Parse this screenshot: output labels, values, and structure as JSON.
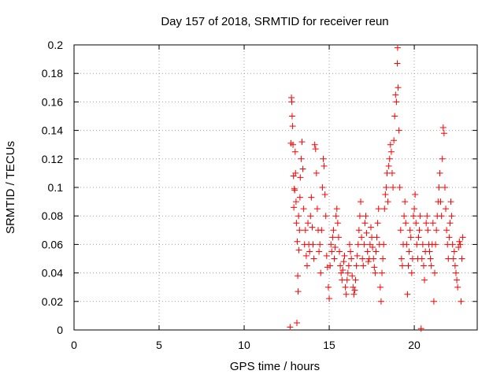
{
  "chart_data": {
    "type": "scatter",
    "title": "Day 157 of 2018, SRMTID for receiver reun",
    "xlabel": "GPS time / hours",
    "ylabel": "SRMTID / TECUs",
    "xlim": [
      0,
      23.7
    ],
    "ylim": [
      0,
      0.2
    ],
    "x_ticks": [
      0,
      5,
      10,
      15,
      20
    ],
    "x_tick_labels": [
      "0",
      "5",
      "10",
      "15",
      "20"
    ],
    "y_ticks": [
      0,
      0.02,
      0.04,
      0.06,
      0.08,
      0.1,
      0.12,
      0.14,
      0.16,
      0.18,
      0.2
    ],
    "y_tick_labels": [
      "0",
      "0.02",
      "0.04",
      "0.06",
      "0.08",
      "0.1",
      "0.12",
      "0.14",
      "0.16",
      "0.18",
      "0.2"
    ],
    "grid": true,
    "marker": "plus",
    "color": "#ff0000",
    "series": [
      {
        "name": "SRMTID",
        "points": [
          [
            12.7,
            0.002
          ],
          [
            12.75,
            0.131
          ],
          [
            12.78,
            0.163
          ],
          [
            12.8,
            0.16
          ],
          [
            12.82,
            0.15
          ],
          [
            12.85,
            0.143
          ],
          [
            12.87,
            0.13
          ],
          [
            12.9,
            0.108
          ],
          [
            12.92,
            0.086
          ],
          [
            12.95,
            0.099
          ],
          [
            12.97,
            0.098
          ],
          [
            13.0,
            0.125
          ],
          [
            13.02,
            0.11
          ],
          [
            13.05,
            0.09
          ],
          [
            13.07,
            0.075
          ],
          [
            13.1,
            0.005
          ],
          [
            13.12,
            0.062
          ],
          [
            13.15,
            0.038
          ],
          [
            13.17,
            0.027
          ],
          [
            13.2,
            0.08
          ],
          [
            13.22,
            0.056
          ],
          [
            13.25,
            0.07
          ],
          [
            13.28,
            0.093
          ],
          [
            13.3,
            0.107
          ],
          [
            13.35,
            0.12
          ],
          [
            13.4,
            0.132
          ],
          [
            13.45,
            0.113
          ],
          [
            13.5,
            0.085
          ],
          [
            13.55,
            0.06
          ],
          [
            13.6,
            0.07
          ],
          [
            13.65,
            0.052
          ],
          [
            13.7,
            0.045
          ],
          [
            13.75,
            0.075
          ],
          [
            13.8,
            0.06
          ],
          [
            13.85,
            0.055
          ],
          [
            13.9,
            0.08
          ],
          [
            13.95,
            0.093
          ],
          [
            14.0,
            0.072
          ],
          [
            14.05,
            0.06
          ],
          [
            14.1,
            0.05
          ],
          [
            14.15,
            0.13
          ],
          [
            14.2,
            0.127
          ],
          [
            14.25,
            0.11
          ],
          [
            14.3,
            0.085
          ],
          [
            14.35,
            0.07
          ],
          [
            14.4,
            0.055
          ],
          [
            14.45,
            0.06
          ],
          [
            14.5,
            0.04
          ],
          [
            14.55,
            0.07
          ],
          [
            14.6,
            0.1
          ],
          [
            14.65,
            0.12
          ],
          [
            14.7,
            0.115
          ],
          [
            14.75,
            0.095
          ],
          [
            14.8,
            0.08
          ],
          [
            14.85,
            0.052
          ],
          [
            14.9,
            0.044
          ],
          [
            14.95,
            0.03
          ],
          [
            15.0,
            0.022
          ],
          [
            15.05,
            0.045
          ],
          [
            15.1,
            0.06
          ],
          [
            15.15,
            0.055
          ],
          [
            15.2,
            0.065
          ],
          [
            15.25,
            0.07
          ],
          [
            15.3,
            0.05
          ],
          [
            15.35,
            0.058
          ],
          [
            15.4,
            0.08
          ],
          [
            15.45,
            0.085
          ],
          [
            15.5,
            0.075
          ],
          [
            15.55,
            0.065
          ],
          [
            15.6,
            0.055
          ],
          [
            15.65,
            0.045
          ],
          [
            15.7,
            0.04
          ],
          [
            15.75,
            0.035
          ],
          [
            15.8,
            0.042
          ],
          [
            15.85,
            0.048
          ],
          [
            15.9,
            0.052
          ],
          [
            15.95,
            0.03
          ],
          [
            16.0,
            0.025
          ],
          [
            16.05,
            0.035
          ],
          [
            16.1,
            0.04
          ],
          [
            16.15,
            0.045
          ],
          [
            16.2,
            0.06
          ],
          [
            16.25,
            0.055
          ],
          [
            16.3,
            0.05
          ],
          [
            16.35,
            0.038
          ],
          [
            16.4,
            0.03
          ],
          [
            16.45,
            0.025
          ],
          [
            16.5,
            0.028
          ],
          [
            16.55,
            0.035
          ],
          [
            16.6,
            0.045
          ],
          [
            16.65,
            0.052
          ],
          [
            16.7,
            0.06
          ],
          [
            16.75,
            0.07
          ],
          [
            16.8,
            0.08
          ],
          [
            16.85,
            0.09
          ],
          [
            16.9,
            0.065
          ],
          [
            16.95,
            0.05
          ],
          [
            17.0,
            0.045
          ],
          [
            17.05,
            0.06
          ],
          [
            17.1,
            0.075
          ],
          [
            17.15,
            0.08
          ],
          [
            17.2,
            0.068
          ],
          [
            17.25,
            0.055
          ],
          [
            17.3,
            0.048
          ],
          [
            17.35,
            0.05
          ],
          [
            17.4,
            0.06
          ],
          [
            17.45,
            0.072
          ],
          [
            17.5,
            0.065
          ],
          [
            17.55,
            0.058
          ],
          [
            17.6,
            0.05
          ],
          [
            17.65,
            0.044
          ],
          [
            17.7,
            0.04
          ],
          [
            17.75,
            0.055
          ],
          [
            17.8,
            0.065
          ],
          [
            17.85,
            0.075
          ],
          [
            17.9,
            0.085
          ],
          [
            17.95,
            0.06
          ],
          [
            18.0,
            0.03
          ],
          [
            18.05,
            0.02
          ],
          [
            18.1,
            0.04
          ],
          [
            18.15,
            0.05
          ],
          [
            18.2,
            0.06
          ],
          [
            18.25,
            0.085
          ],
          [
            18.3,
            0.095
          ],
          [
            18.35,
            0.1
          ],
          [
            18.4,
            0.11
          ],
          [
            18.45,
            0.09
          ],
          [
            18.5,
            0.115
          ],
          [
            18.55,
            0.12
          ],
          [
            18.6,
            0.13
          ],
          [
            18.65,
            0.125
          ],
          [
            18.7,
            0.11
          ],
          [
            18.75,
            0.1
          ],
          [
            18.8,
            0.133
          ],
          [
            18.85,
            0.15
          ],
          [
            18.9,
            0.165
          ],
          [
            18.95,
            0.16
          ],
          [
            19.0,
            0.187
          ],
          [
            19.02,
            0.198
          ],
          [
            19.05,
            0.17
          ],
          [
            19.1,
            0.14
          ],
          [
            19.15,
            0.1
          ],
          [
            19.2,
            0.07
          ],
          [
            19.25,
            0.05
          ],
          [
            19.3,
            0.045
          ],
          [
            19.35,
            0.06
          ],
          [
            19.4,
            0.08
          ],
          [
            19.45,
            0.09
          ],
          [
            19.5,
            0.075
          ],
          [
            19.55,
            0.06
          ],
          [
            19.6,
            0.025
          ],
          [
            19.65,
            0.045
          ],
          [
            19.7,
            0.055
          ],
          [
            19.75,
            0.07
          ],
          [
            19.8,
            0.065
          ],
          [
            19.85,
            0.04
          ],
          [
            19.9,
            0.05
          ],
          [
            19.95,
            0.08
          ],
          [
            20.0,
            0.085
          ],
          [
            20.05,
            0.095
          ],
          [
            20.1,
            0.075
          ],
          [
            20.15,
            0.06
          ],
          [
            20.2,
            0.05
          ],
          [
            20.25,
            0.065
          ],
          [
            20.3,
            0.07
          ],
          [
            20.35,
            0.08
          ],
          [
            20.4,
            0.001
          ],
          [
            20.45,
            0.05
          ],
          [
            20.5,
            0.06
          ],
          [
            20.55,
            0.045
          ],
          [
            20.6,
            0.035
          ],
          [
            20.65,
            0.055
          ],
          [
            20.7,
            0.075
          ],
          [
            20.75,
            0.08
          ],
          [
            20.8,
            0.07
          ],
          [
            20.85,
            0.06
          ],
          [
            20.9,
            0.055
          ],
          [
            20.95,
            0.05
          ],
          [
            21.0,
            0.045
          ],
          [
            21.05,
            0.06
          ],
          [
            21.1,
            0.075
          ],
          [
            21.15,
            0.02
          ],
          [
            21.2,
            0.04
          ],
          [
            21.25,
            0.06
          ],
          [
            21.3,
            0.07
          ],
          [
            21.35,
            0.08
          ],
          [
            21.4,
            0.09
          ],
          [
            21.45,
            0.1
          ],
          [
            21.5,
            0.11
          ],
          [
            21.55,
            0.09
          ],
          [
            21.6,
            0.08
          ],
          [
            21.65,
            0.12
          ],
          [
            21.7,
            0.142
          ],
          [
            21.75,
            0.138
          ],
          [
            21.8,
            0.1
          ],
          [
            21.85,
            0.085
          ],
          [
            21.9,
            0.07
          ],
          [
            21.95,
            0.06
          ],
          [
            22.0,
            0.05
          ],
          [
            22.05,
            0.065
          ],
          [
            22.1,
            0.075
          ],
          [
            22.15,
            0.09
          ],
          [
            22.2,
            0.08
          ],
          [
            22.25,
            0.06
          ],
          [
            22.3,
            0.05
          ],
          [
            22.35,
            0.055
          ],
          [
            22.4,
            0.045
          ],
          [
            22.45,
            0.04
          ],
          [
            22.5,
            0.035
          ],
          [
            22.55,
            0.03
          ],
          [
            22.6,
            0.058
          ],
          [
            22.65,
            0.062
          ],
          [
            22.7,
            0.06
          ],
          [
            22.75,
            0.02
          ],
          [
            22.8,
            0.05
          ],
          [
            22.85,
            0.065
          ]
        ]
      }
    ]
  }
}
